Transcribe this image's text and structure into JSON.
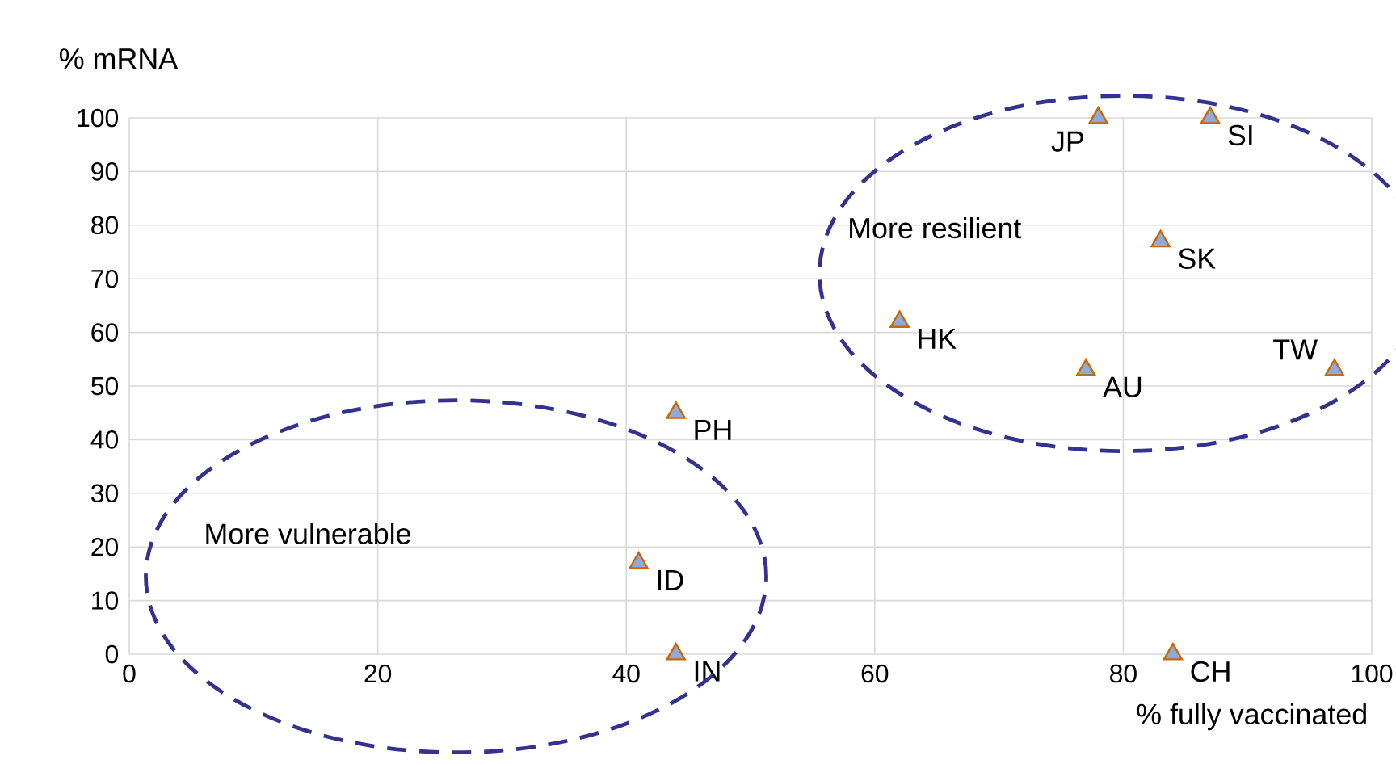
{
  "chart_data": {
    "type": "scatter",
    "xlabel": "% fully vaccinated",
    "ylabel": "% mRNA",
    "xlim": [
      0,
      100
    ],
    "ylim": [
      0,
      100
    ],
    "xticks": [
      0,
      20,
      40,
      60,
      80,
      100
    ],
    "yticks": [
      0,
      10,
      20,
      30,
      40,
      50,
      60,
      70,
      80,
      90,
      100
    ],
    "grid": true,
    "marker": "triangle",
    "series": [
      {
        "color": "#8faadc",
        "x": [
          78,
          87,
          83,
          62,
          77,
          97,
          44,
          41,
          44,
          84
        ],
        "values": [
          100,
          100,
          77,
          62,
          53,
          53,
          45,
          17,
          0,
          0
        ]
      }
    ],
    "annotations": [
      {
        "text": "JP",
        "x": 78,
        "y": 100
      },
      {
        "text": "SI",
        "x": 87,
        "y": 100
      },
      {
        "text": "SK",
        "x": 83,
        "y": 77
      },
      {
        "text": "HK",
        "x": 62,
        "y": 62
      },
      {
        "text": "AU",
        "x": 77,
        "y": 53
      },
      {
        "text": "TW",
        "x": 97,
        "y": 53
      },
      {
        "text": "PH",
        "x": 44,
        "y": 45
      },
      {
        "text": "ID",
        "x": 41,
        "y": 17
      },
      {
        "text": "IN",
        "x": 44,
        "y": 0
      },
      {
        "text": "CH",
        "x": 84,
        "y": 0
      },
      "More resilient",
      "More vulnerable"
    ]
  }
}
